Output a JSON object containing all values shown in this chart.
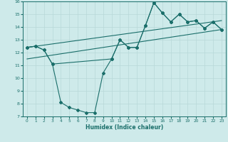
{
  "xlabel": "Humidex (Indice chaleur)",
  "background_color": "#ceeaea",
  "grid_color": "#b8d8d8",
  "line_color": "#1a6e6a",
  "xlim": [
    -0.5,
    23.5
  ],
  "ylim": [
    7,
    16
  ],
  "xticks": [
    0,
    1,
    2,
    3,
    4,
    5,
    6,
    7,
    8,
    9,
    10,
    11,
    12,
    13,
    14,
    15,
    16,
    17,
    18,
    19,
    20,
    21,
    22,
    23
  ],
  "yticks": [
    7,
    8,
    9,
    10,
    11,
    12,
    13,
    14,
    15,
    16
  ],
  "line_full_x": [
    0,
    1,
    2,
    3,
    4,
    5,
    6,
    7,
    8,
    9,
    10,
    11,
    12,
    13,
    14,
    15,
    16,
    17,
    18,
    19,
    20,
    21,
    22,
    23
  ],
  "line_full_y": [
    12.4,
    12.5,
    12.2,
    11.1,
    8.1,
    7.7,
    7.5,
    7.3,
    7.3,
    10.4,
    11.5,
    13.0,
    12.4,
    12.4,
    14.1,
    15.9,
    15.1,
    14.4,
    15.0,
    14.4,
    14.5,
    13.9,
    14.4,
    13.8
  ],
  "line_top_x": [
    0,
    1,
    2,
    3,
    10,
    11,
    12,
    13,
    14,
    15,
    16,
    17,
    18,
    19,
    20,
    21,
    22,
    23
  ],
  "line_top_y": [
    12.4,
    12.5,
    12.2,
    11.1,
    11.5,
    13.0,
    12.4,
    12.4,
    14.1,
    15.9,
    15.1,
    14.4,
    15.0,
    14.4,
    14.5,
    13.9,
    14.4,
    13.8
  ],
  "line_low_trend_x": [
    0,
    23
  ],
  "line_low_trend_y": [
    11.5,
    13.8
  ],
  "line_high_trend_x": [
    0,
    23
  ],
  "line_high_trend_y": [
    12.4,
    14.5
  ]
}
